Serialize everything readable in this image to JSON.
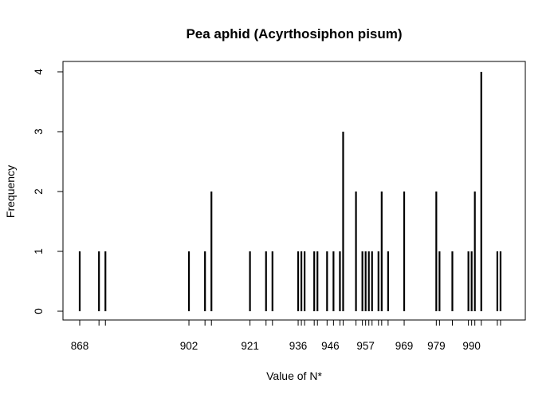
{
  "chart_data": {
    "type": "bar",
    "title": "Pea aphid (Acyrthosiphon pisum)",
    "xlabel": "Value of N*",
    "ylabel": "Frequency",
    "xlim": [
      866,
      1006
    ],
    "ylim": [
      0,
      4
    ],
    "x_tick_labels": [
      868,
      902,
      921,
      936,
      946,
      957,
      969,
      979,
      990
    ],
    "y_tick_labels": [
      0,
      1,
      2,
      3,
      4
    ],
    "x": [
      868,
      874,
      876,
      902,
      907,
      909,
      921,
      926,
      928,
      936,
      937,
      938,
      941,
      942,
      945,
      947,
      949,
      950,
      954,
      956,
      957,
      958,
      959,
      961,
      962,
      964,
      969,
      979,
      980,
      984,
      989,
      990,
      991,
      993,
      998,
      999
    ],
    "values": [
      1,
      1,
      1,
      1,
      1,
      2,
      1,
      1,
      1,
      1,
      1,
      1,
      1,
      1,
      1,
      1,
      1,
      3,
      2,
      1,
      1,
      1,
      1,
      1,
      2,
      1,
      2,
      2,
      1,
      1,
      1,
      1,
      2,
      4,
      1,
      1
    ],
    "grid": false,
    "legend": "none"
  }
}
